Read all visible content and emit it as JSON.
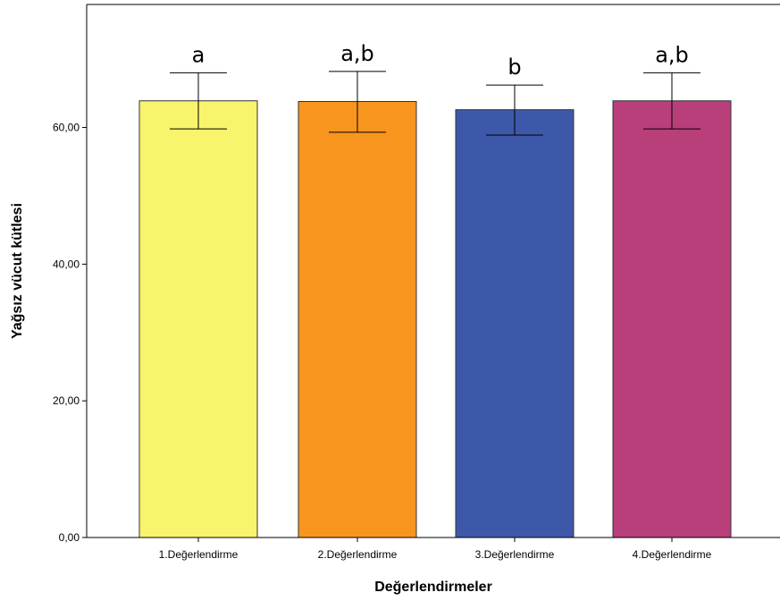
{
  "chart_data": {
    "type": "bar",
    "title": "",
    "xlabel": "Değerlendirmeler",
    "ylabel": "Yağsız vücut kütlesi",
    "categories": [
      "1.Değerlendirme",
      "2.Değerlendirme",
      "3.Değerlendirme",
      "4.Değerlendirme"
    ],
    "values": [
      63.9,
      63.8,
      62.6,
      63.9
    ],
    "error_low": [
      59.8,
      59.3,
      58.9,
      59.8
    ],
    "error_high": [
      68.0,
      68.2,
      66.2,
      68.0
    ],
    "annotations": [
      "a",
      "a,b",
      "b",
      "a,b"
    ],
    "bar_colors": [
      "#f8f46c",
      "#f7951f",
      "#3e58a9",
      "#b83f7a"
    ],
    "yticks": [
      "0,00",
      "20,00",
      "40,00",
      "60,00"
    ],
    "ytick_values": [
      0,
      20,
      40,
      60
    ],
    "ylim": [
      0,
      78
    ],
    "grid": false,
    "legend": "none"
  }
}
